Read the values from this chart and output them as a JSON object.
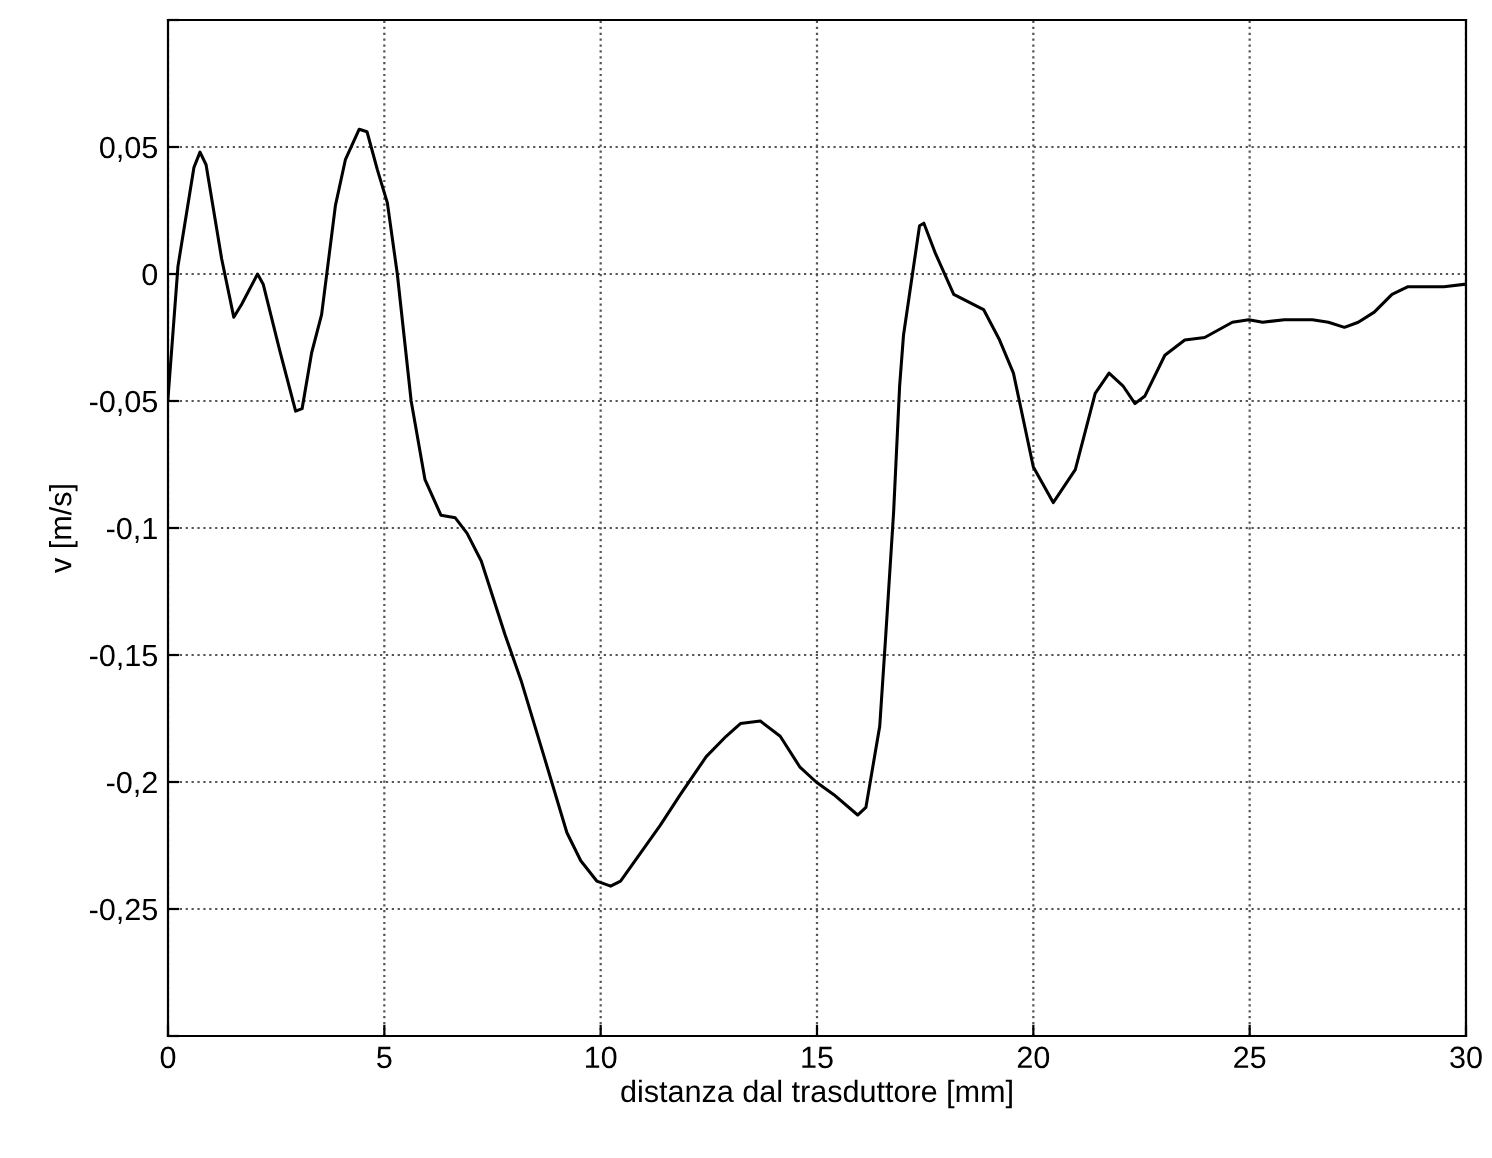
{
  "chart_data": {
    "type": "line",
    "xlabel": "distanza dal trasduttore [mm]",
    "ylabel": "v [m/s]",
    "xlim": [
      0,
      30
    ],
    "xticks": [
      0,
      5,
      10,
      15,
      20,
      25,
      30
    ],
    "ylim": [
      -0.3,
      0.1
    ],
    "yticks": [
      {
        "value": -0.3,
        "label": null
      },
      {
        "value": -0.25,
        "label": "-0,25"
      },
      {
        "value": -0.2,
        "label": "-0,2"
      },
      {
        "value": -0.15,
        "label": "-0,15"
      },
      {
        "value": -0.1,
        "label": "-0,1"
      },
      {
        "value": -0.05,
        "label": "-0,05"
      },
      {
        "value": 0,
        "label": "0"
      },
      {
        "value": 0.05,
        "label": "0,05"
      },
      {
        "value": 0.1,
        "label": null
      }
    ],
    "grid": true,
    "marker": "none",
    "line_style": "solid",
    "series": [
      {
        "color": "#000000",
        "x": [
          0,
          0.23,
          0.6,
          0.74,
          0.88,
          1.24,
          1.52,
          1.7,
          2.07,
          2.2,
          2.58,
          2.95,
          3.1,
          3.32,
          3.55,
          3.87,
          4.1,
          4.42,
          4.6,
          4.84,
          5.07,
          5.3,
          5.62,
          5.94,
          6.31,
          6.64,
          6.91,
          7.24,
          7.79,
          8.16,
          8.71,
          9.22,
          9.54,
          9.91,
          10.23,
          10.46,
          10.92,
          11.38,
          11.84,
          12.44,
          12.9,
          13.23,
          13.69,
          14.15,
          14.6,
          14.98,
          15.39,
          15.94,
          16.13,
          16.45,
          16.59,
          16.77,
          16.91,
          17.0,
          17.37,
          17.47,
          17.74,
          18.16,
          18.85,
          19.22,
          19.54,
          20.0,
          20.46,
          20.97,
          21.43,
          21.75,
          22.07,
          22.35,
          22.58,
          23.04,
          23.5,
          23.96,
          24.6,
          24.98,
          25.3,
          25.8,
          26.45,
          26.82,
          27.19,
          27.51,
          27.88,
          28.29,
          28.66,
          29.49,
          30.0
        ],
        "values": [
          -0.049,
          0.003,
          0.042,
          0.048,
          0.043,
          0.006,
          -0.017,
          -0.012,
          0.0,
          -0.004,
          -0.03,
          -0.054,
          -0.053,
          -0.031,
          -0.016,
          0.027,
          0.045,
          0.057,
          0.056,
          0.041,
          0.028,
          0.0,
          -0.05,
          -0.081,
          -0.095,
          -0.096,
          -0.102,
          -0.113,
          -0.142,
          -0.16,
          -0.191,
          -0.22,
          -0.231,
          -0.239,
          -0.241,
          -0.239,
          -0.228,
          -0.217,
          -0.205,
          -0.19,
          -0.182,
          -0.177,
          -0.176,
          -0.182,
          -0.194,
          -0.2,
          -0.205,
          -0.213,
          -0.21,
          -0.178,
          -0.142,
          -0.094,
          -0.044,
          -0.024,
          0.019,
          0.02,
          0.008,
          -0.008,
          -0.014,
          -0.026,
          -0.039,
          -0.076,
          -0.09,
          -0.077,
          -0.047,
          -0.039,
          -0.044,
          -0.051,
          -0.048,
          -0.032,
          -0.026,
          -0.025,
          -0.019,
          -0.018,
          -0.019,
          -0.018,
          -0.018,
          -0.019,
          -0.021,
          -0.019,
          -0.015,
          -0.008,
          -0.005,
          -0.005,
          -0.004
        ]
      }
    ]
  }
}
